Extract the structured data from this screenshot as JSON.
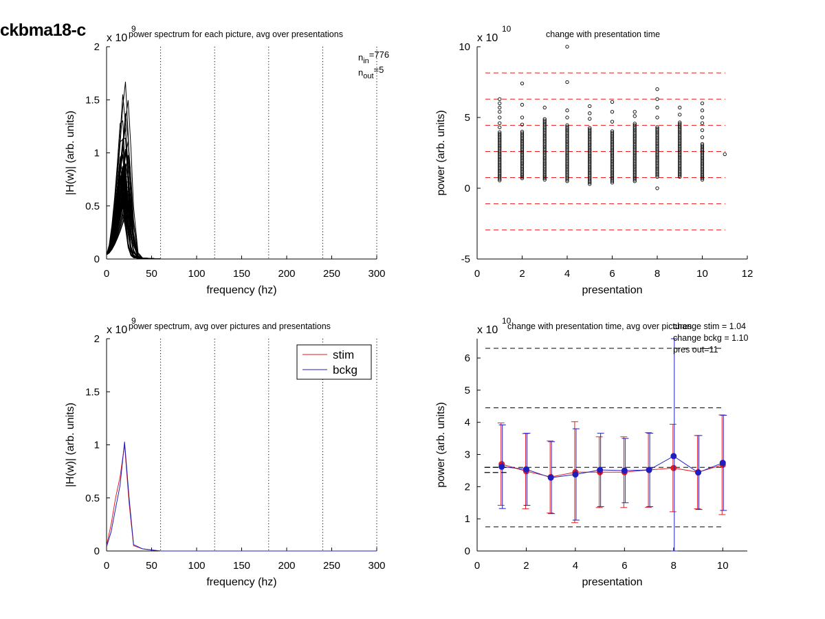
{
  "figure": {
    "title": "ckbma18-c"
  },
  "chart_data": [
    {
      "id": "p1",
      "type": "line",
      "title": "power spectrum for each picture, avg over presentations",
      "xlabel": "frequency (hz)",
      "ylabel": "|H(w)| (arb. units)",
      "xlim": [
        0,
        300
      ],
      "ylim": [
        0,
        2
      ],
      "xticks": [
        "0",
        "50",
        "100",
        "150",
        "200",
        "250",
        "300"
      ],
      "yticks": [
        "0",
        "0.5",
        "1",
        "1.5",
        "2"
      ],
      "exponent_label": "x 10",
      "exponent_power": "9",
      "vlines": [
        60,
        120,
        180,
        240,
        300
      ],
      "annotation_lines": [
        {
          "base": "n",
          "sub": "in",
          "rest": "=776"
        },
        {
          "base": "n",
          "sub": "out",
          "rest": "=5"
        }
      ],
      "peaks": [
        1.73,
        1.27,
        1.1,
        0.95,
        0.85,
        0.75,
        0.65
      ],
      "grid": false
    },
    {
      "id": "p2",
      "type": "scatter",
      "title": "change with presentation time",
      "xlabel": "presentation",
      "ylabel": "power (arb. units)",
      "xlim": [
        0,
        12
      ],
      "ylim": [
        -5,
        10
      ],
      "xticks": [
        "0",
        "2",
        "4",
        "6",
        "8",
        "10",
        "12"
      ],
      "yticks": [
        "-5",
        "0",
        "5",
        "10"
      ],
      "exponent_label": "x 10",
      "exponent_power": "10",
      "hlines": [
        8.15,
        6.3,
        4.45,
        2.6,
        0.75,
        -1.1,
        -2.95
      ],
      "points": [
        {
          "x": 1,
          "min": 0.55,
          "max": 4.0,
          "outliers": [
            4.3,
            4.6,
            5.0,
            5.4,
            5.7,
            6.0,
            6.3
          ]
        },
        {
          "x": 2,
          "min": 0.7,
          "max": 4.0,
          "outliers": [
            4.5,
            5.0,
            5.9,
            7.4
          ]
        },
        {
          "x": 3,
          "min": 0.6,
          "max": 4.9,
          "outliers": [
            5.7
          ]
        },
        {
          "x": 4,
          "min": 0.5,
          "max": 4.5,
          "outliers": [
            5.0,
            5.5,
            7.5,
            10.0
          ]
        },
        {
          "x": 5,
          "min": 0.3,
          "max": 4.3,
          "outliers": [
            4.9,
            5.3,
            5.8
          ]
        },
        {
          "x": 6,
          "min": 0.4,
          "max": 4.1,
          "outliers": [
            4.7,
            5.4,
            6.1
          ]
        },
        {
          "x": 7,
          "min": 0.5,
          "max": 4.6,
          "outliers": [
            5.1,
            5.4
          ]
        },
        {
          "x": 8,
          "min": 0.8,
          "max": 4.4,
          "outliers": [
            0.0,
            5.0,
            5.7,
            6.3,
            7.0
          ]
        },
        {
          "x": 9,
          "min": 0.8,
          "max": 4.7,
          "outliers": [
            5.2,
            5.7
          ]
        },
        {
          "x": 10,
          "min": 0.6,
          "max": 3.2,
          "outliers": [
            3.6,
            4.1,
            4.6,
            5.0,
            5.5,
            6.0
          ]
        },
        {
          "x": 11,
          "min": 2.4,
          "max": 2.4,
          "outliers": []
        }
      ],
      "hline_color": "#e41a1c",
      "grid": false
    },
    {
      "id": "p3",
      "type": "line",
      "title": "power spectrum, avg over pictures and presentations",
      "xlabel": "frequency (hz)",
      "ylabel": "|H(w)| (arb. units)",
      "xlim": [
        0,
        300
      ],
      "ylim": [
        0,
        2
      ],
      "xticks": [
        "0",
        "50",
        "100",
        "150",
        "200",
        "250",
        "300"
      ],
      "yticks": [
        "0",
        "0.5",
        "1",
        "1.5",
        "2"
      ],
      "exponent_label": "x 10",
      "exponent_power": "9",
      "vlines": [
        60,
        120,
        180,
        240,
        300
      ],
      "legend": {
        "position": "top-right",
        "entries": [
          "stim",
          "bckg"
        ]
      },
      "series": [
        {
          "name": "stim",
          "color": "#e41a1c",
          "x": [
            0,
            5,
            10,
            15,
            20,
            25,
            30,
            40,
            50,
            60,
            300
          ],
          "y": [
            0.05,
            0.25,
            0.5,
            0.7,
            1.0,
            0.45,
            0.05,
            0.02,
            0.01,
            0.0,
            0.0
          ]
        },
        {
          "name": "bckg",
          "color": "#1f1fbf",
          "x": [
            0,
            5,
            10,
            15,
            20,
            25,
            30,
            40,
            50,
            60,
            300
          ],
          "y": [
            0.04,
            0.18,
            0.4,
            0.62,
            1.03,
            0.5,
            0.06,
            0.02,
            0.01,
            0.0,
            0.0
          ]
        }
      ],
      "grid": false
    },
    {
      "id": "p4",
      "type": "line",
      "title": "change with presentation time, avg over pictures",
      "xlabel": "presentation",
      "ylabel": "power (arb. units)",
      "xlim": [
        0,
        11
      ],
      "ylim": [
        0,
        6.6
      ],
      "xticks": [
        "0",
        "2",
        "4",
        "6",
        "8",
        "10"
      ],
      "yticks": [
        "0",
        "1",
        "2",
        "3",
        "4",
        "5",
        "6"
      ],
      "exponent_label": "x 10",
      "exponent_power": "10",
      "annotations": [
        "change stim = 1.04",
        "change bckg = 1.10",
        "pres out=11"
      ],
      "hlines": [
        6.3,
        4.45,
        2.6,
        0.75
      ],
      "mean_segments": [
        {
          "x": [
            0.3,
            1.3
          ],
          "y": 2.44
        },
        {
          "x": [
            0.3,
            1.3
          ],
          "y": 2.6
        }
      ],
      "series": [
        {
          "name": "stim",
          "color": "#e41a1c",
          "x": [
            1,
            2,
            3,
            4,
            5,
            6,
            7,
            8,
            9,
            10
          ],
          "y": [
            2.7,
            2.48,
            2.3,
            2.45,
            2.45,
            2.45,
            2.52,
            2.58,
            2.45,
            2.68
          ],
          "err": [
            1.28,
            1.17,
            1.12,
            1.57,
            1.1,
            1.1,
            1.16,
            1.36,
            1.14,
            1.55
          ]
        },
        {
          "name": "bckg",
          "color": "#1f1fbf",
          "x": [
            1,
            2,
            3,
            4,
            5,
            6,
            7,
            8,
            9,
            10
          ],
          "y": [
            2.62,
            2.54,
            2.28,
            2.38,
            2.52,
            2.5,
            2.52,
            2.95,
            2.44,
            2.74
          ],
          "err": [
            1.3,
            1.12,
            1.12,
            1.42,
            1.14,
            1.0,
            1.14,
            3.65,
            1.15,
            1.48
          ]
        }
      ],
      "grid": false
    }
  ]
}
